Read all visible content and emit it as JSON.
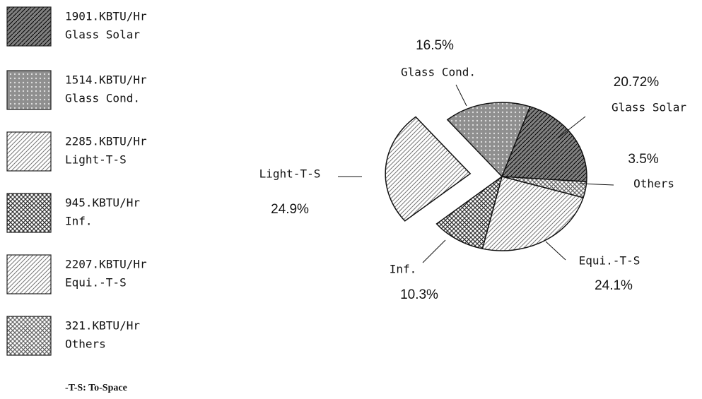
{
  "chart_data": {
    "type": "pie",
    "categories": [
      "Glass Solar",
      "Glass Cond.",
      "Light-T-S",
      "Inf.",
      "Equi.-T-S",
      "Others"
    ],
    "values": [
      20.72,
      16.5,
      24.9,
      10.3,
      24.1,
      3.5
    ],
    "value_labels": [
      "20.72%",
      "16.5%",
      "24.9%",
      "10.3%",
      "24.1%",
      "3.5%"
    ],
    "legend_labels": [
      "1901.KBTU/Hr",
      "1514.KBTU/Hr",
      "2285.KBTU/Hr",
      "945.KBTU/Hr",
      "2207.KBTU/Hr",
      "321.KBTU/Hr"
    ],
    "colors": [
      "#555555",
      "#444444",
      "#777777",
      "#333333",
      "#777777",
      "#666666"
    ],
    "exploded": "Light-T-S",
    "footnote": "-T-S: To-Space"
  }
}
